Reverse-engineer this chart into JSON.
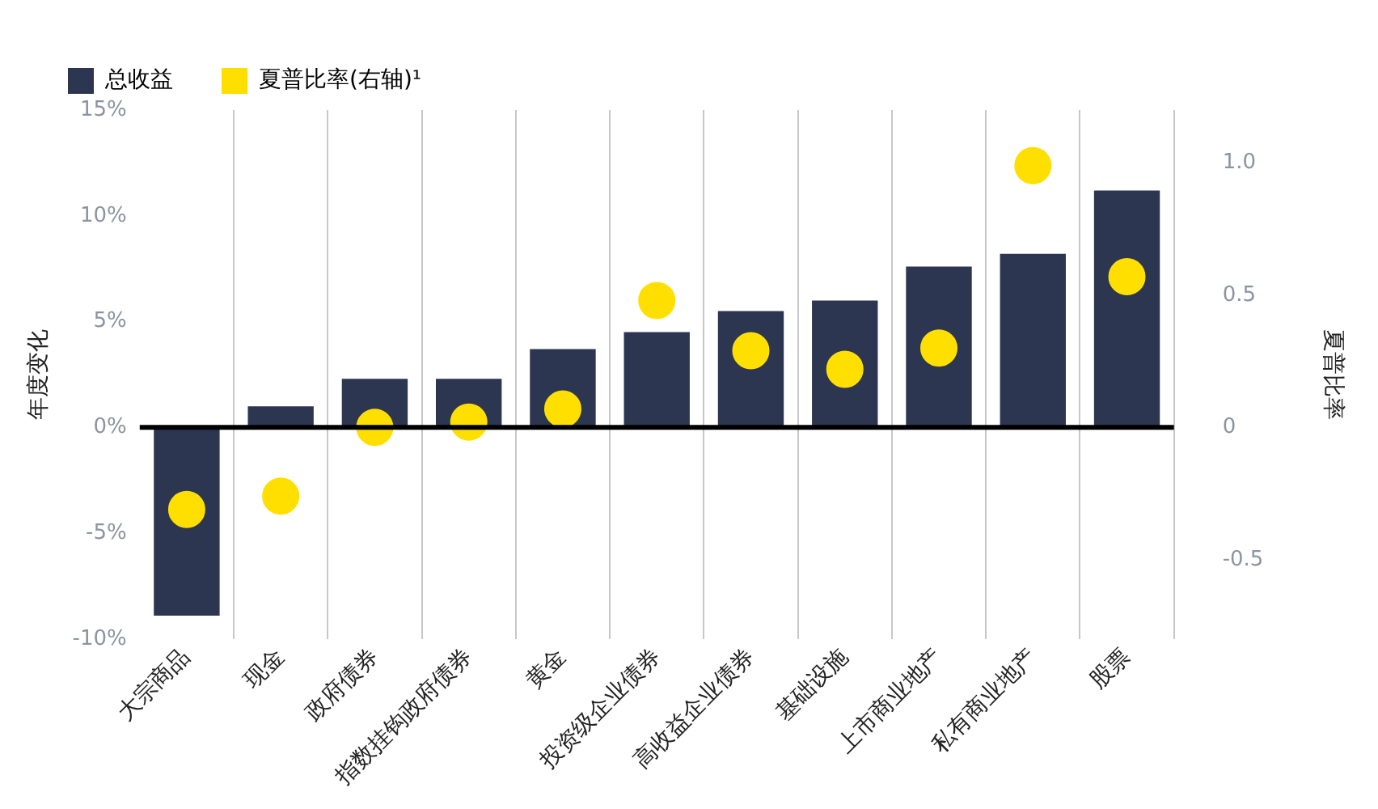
{
  "chart_data": {
    "type": "bar",
    "categories": [
      "大宗商品",
      "现金",
      "政府债券",
      "指数挂钩政府债券",
      "黄金",
      "投资级企业债券",
      "高收益企业债券",
      "基础设施",
      "上市商业地产",
      "私有商业地产",
      "股票"
    ],
    "series": [
      {
        "name": "总收益",
        "color": "#2d3651",
        "values": [
          -8.9,
          1.0,
          2.3,
          2.3,
          3.7,
          4.5,
          5.5,
          6.0,
          7.6,
          8.2,
          11.2
        ]
      },
      {
        "name": "夏普比率(右轴)¹",
        "type": "scatter",
        "axis": "y2",
        "color": "#ffdf00",
        "values": [
          -0.31,
          -0.26,
          0.0,
          0.02,
          0.07,
          0.48,
          0.29,
          0.22,
          0.3,
          0.99,
          0.57
        ]
      }
    ],
    "ylabel": "年度变化",
    "y2label": "夏普比率",
    "ylim": [
      -10,
      15
    ],
    "yticks": [
      {
        "value": -10,
        "label": "-10%"
      },
      {
        "value": -5,
        "label": "-5%"
      },
      {
        "value": 0,
        "label": "0%"
      },
      {
        "value": 5,
        "label": "5%"
      },
      {
        "value": 10,
        "label": "10%"
      },
      {
        "value": 15,
        "label": "15%"
      }
    ],
    "y2lim": [
      -0.8,
      1.2
    ],
    "y2ticks": [
      -0.5,
      0,
      0.5,
      {
        "value": 1,
        "label": "1.0"
      }
    ],
    "ref_lines": [
      {
        "axis": "y",
        "value": 0,
        "color": "#000000"
      }
    ],
    "grid": "x",
    "legend": "top left",
    "marker": "circle"
  }
}
